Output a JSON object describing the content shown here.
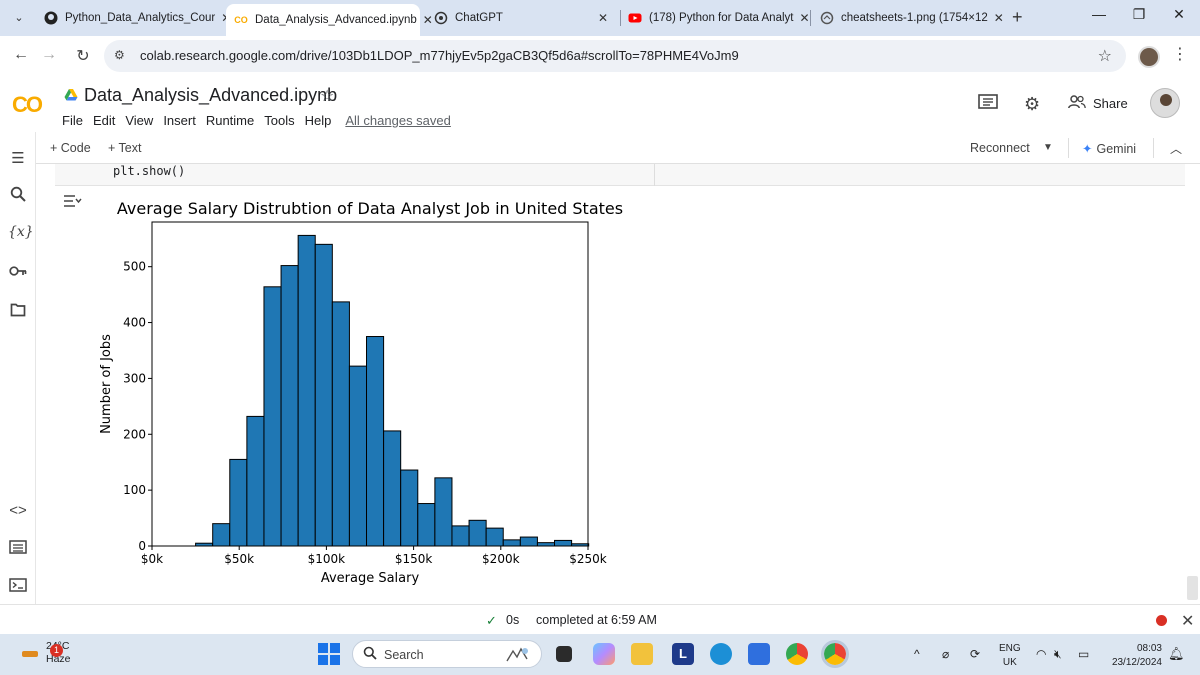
{
  "browser": {
    "tabs": [
      {
        "label": "Python_Data_Analytics_Cour",
        "favicon": "github-icon"
      },
      {
        "label": "Data_Analysis_Advanced.ipynb",
        "favicon": "colab-icon",
        "active": true
      },
      {
        "label": "ChatGPT",
        "favicon": "chatgpt-icon"
      },
      {
        "label": "(178) Python for Data Analyt",
        "favicon": "youtube-icon"
      },
      {
        "label": "cheatsheets-1.png (1754×12",
        "favicon": "image-icon"
      }
    ],
    "url": "colab.research.google.com/drive/103Db1LDOP_m77hjyEv5p2gaCB3Qf5d6a#scrollTo=78PHME4VoJm9"
  },
  "colab": {
    "logo": "CO",
    "title": "Data_Analysis_Advanced.ipynb",
    "menu": [
      "File",
      "Edit",
      "View",
      "Insert",
      "Runtime",
      "Tools",
      "Help"
    ],
    "saved_status": "All changes saved",
    "share_label": "Share",
    "toolbar": {
      "add_code": "+ Code",
      "add_text": "+ Text",
      "reconnect": "Reconnect",
      "gemini": "Gemini"
    },
    "code_snippet": "plt.show()",
    "status": {
      "duration": "0s",
      "completed": "completed at 6:59 AM"
    }
  },
  "chart_data": {
    "type": "bar",
    "title": "Average Salary Distrubtion of Data Analyst Job in United States",
    "xlabel": "Average Salary",
    "ylabel": "Number of Jobs",
    "xlim": [
      0,
      250000
    ],
    "ylim": [
      0,
      580
    ],
    "xticks": [
      0,
      50000,
      100000,
      150000,
      200000,
      250000
    ],
    "xtick_labels": [
      "$0k",
      "$50k",
      "$100k",
      "$150k",
      "$200k",
      "$250k"
    ],
    "yticks": [
      0,
      100,
      200,
      300,
      400,
      500
    ],
    "ytick_labels": [
      "0",
      "100",
      "200",
      "300",
      "400",
      "500"
    ],
    "bin_width": 9800,
    "bin_starts": [
      25000,
      34800,
      44600,
      54400,
      64200,
      74000,
      83800,
      93600,
      103400,
      113200,
      123000,
      132800,
      142600,
      152400,
      162200,
      172000,
      181800,
      191600,
      201400,
      211200,
      221000,
      230800,
      240600
    ],
    "values": [
      5,
      40,
      155,
      232,
      464,
      502,
      556,
      540,
      437,
      322,
      375,
      206,
      136,
      76,
      122,
      36,
      46,
      32,
      11,
      16,
      6,
      10,
      4
    ],
    "bar_color": "#1f77b4",
    "edge_color": "#000000",
    "grid": false
  },
  "taskbar": {
    "weather_temp": "24°C",
    "weather_desc": "Haze",
    "weather_badge": "1",
    "search_label": "Search",
    "lang_top": "ENG",
    "lang_bottom": "UK",
    "time": "08:03",
    "date": "23/12/2024"
  }
}
